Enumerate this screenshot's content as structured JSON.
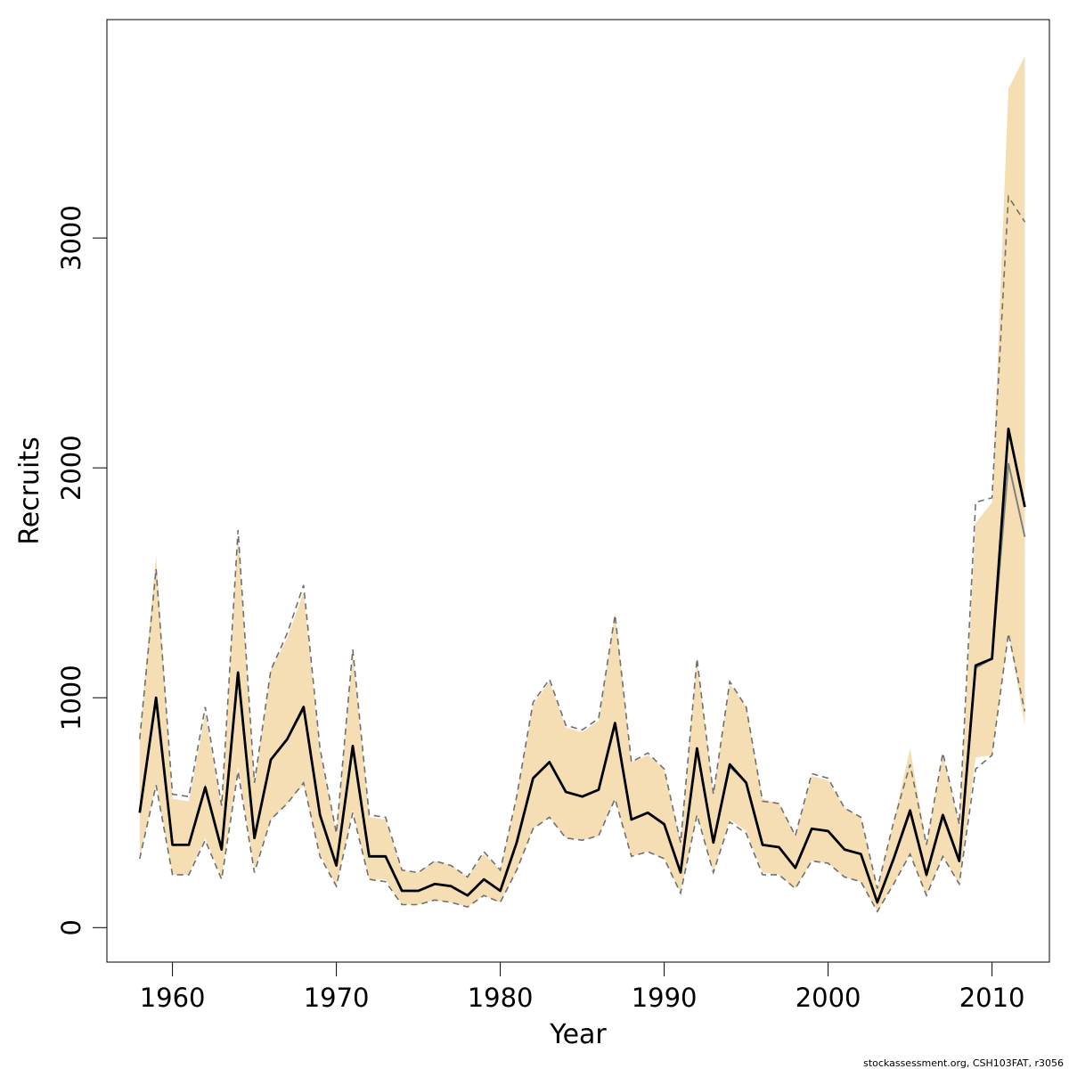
{
  "chart_data": {
    "type": "line",
    "title": "",
    "xlabel": "Year",
    "ylabel": "Recruits",
    "xlim": [
      1956,
      2013.5
    ],
    "ylim": [
      -150,
      3950
    ],
    "x_ticks": [
      1960,
      1970,
      1980,
      1990,
      2000,
      2010
    ],
    "y_ticks": [
      0,
      1000,
      2000,
      3000
    ],
    "grid": false,
    "legend": "none",
    "colors": {
      "band_fill": "#f5deb3",
      "main_line": "#000000",
      "secondary_line": "#808080",
      "interval_line": "#707070"
    },
    "x": [
      1958,
      1959,
      1960,
      1961,
      1962,
      1963,
      1964,
      1965,
      1966,
      1967,
      1968,
      1969,
      1970,
      1971,
      1972,
      1973,
      1974,
      1975,
      1976,
      1977,
      1978,
      1979,
      1980,
      1981,
      1982,
      1983,
      1984,
      1985,
      1986,
      1987,
      1988,
      1989,
      1990,
      1991,
      1992,
      1993,
      1994,
      1995,
      1996,
      1997,
      1998,
      1999,
      2000,
      2001,
      2002,
      2003,
      2004,
      2005,
      2006,
      2007,
      2008,
      2009,
      2010,
      2011,
      2012
    ],
    "series": [
      {
        "role": "estimate",
        "values": [
          500,
          1000,
          360,
          360,
          610,
          340,
          1110,
          390,
          730,
          820,
          960,
          490,
          270,
          790,
          310,
          310,
          160,
          160,
          190,
          180,
          140,
          210,
          160,
          370,
          650,
          720,
          590,
          570,
          600,
          890,
          470,
          500,
          450,
          240,
          780,
          370,
          710,
          630,
          360,
          350,
          260,
          430,
          420,
          340,
          320,
          110,
          300,
          510,
          230,
          490,
          290,
          1140,
          1170,
          2170,
          1830
        ]
      },
      {
        "role": "secondary-estimate",
        "values": [
          500,
          990,
          360,
          360,
          610,
          340,
          1100,
          390,
          730,
          820,
          950,
          490,
          270,
          780,
          310,
          310,
          160,
          160,
          190,
          180,
          140,
          210,
          160,
          370,
          650,
          720,
          590,
          570,
          600,
          880,
          470,
          500,
          450,
          240,
          770,
          370,
          700,
          630,
          360,
          350,
          260,
          430,
          420,
          340,
          320,
          110,
          300,
          500,
          230,
          480,
          290,
          1130,
          1170,
          2020,
          1700
        ]
      },
      {
        "role": "band-upper",
        "values": [
          830,
          1620,
          560,
          550,
          930,
          520,
          1720,
          620,
          1120,
          1260,
          1460,
          770,
          410,
          1200,
          480,
          470,
          250,
          240,
          290,
          270,
          220,
          320,
          250,
          570,
          970,
          1070,
          870,
          850,
          900,
          1370,
          720,
          750,
          690,
          370,
          1160,
          580,
          1060,
          960,
          560,
          540,
          400,
          660,
          640,
          520,
          480,
          170,
          460,
          780,
          360,
          750,
          450,
          1760,
          1850,
          3650,
          3790
        ]
      },
      {
        "role": "band-lower",
        "values": [
          300,
          630,
          230,
          230,
          390,
          220,
          700,
          250,
          470,
          540,
          620,
          320,
          180,
          510,
          210,
          210,
          100,
          100,
          120,
          110,
          90,
          140,
          110,
          250,
          430,
          480,
          390,
          380,
          400,
          560,
          310,
          330,
          300,
          150,
          490,
          240,
          470,
          420,
          240,
          230,
          170,
          290,
          280,
          220,
          200,
          70,
          190,
          320,
          140,
          310,
          190,
          740,
          750,
          1280,
          880
        ]
      },
      {
        "role": "interval-upper",
        "values": [
          820,
          1560,
          580,
          570,
          960,
          530,
          1730,
          630,
          1120,
          1280,
          1490,
          780,
          410,
          1210,
          490,
          480,
          250,
          240,
          290,
          270,
          220,
          330,
          250,
          570,
          980,
          1080,
          880,
          860,
          910,
          1360,
          720,
          760,
          690,
          370,
          1170,
          580,
          1070,
          960,
          550,
          540,
          400,
          670,
          650,
          520,
          480,
          170,
          460,
          710,
          360,
          760,
          450,
          1850,
          1870,
          3180,
          3070
        ]
      },
      {
        "role": "interval-lower",
        "values": [
          300,
          620,
          230,
          230,
          380,
          210,
          680,
          240,
          470,
          540,
          630,
          310,
          180,
          500,
          210,
          200,
          100,
          100,
          120,
          110,
          90,
          140,
          110,
          250,
          430,
          480,
          390,
          380,
          400,
          560,
          310,
          330,
          300,
          150,
          490,
          240,
          460,
          410,
          230,
          230,
          170,
          290,
          280,
          220,
          200,
          70,
          190,
          320,
          140,
          310,
          190,
          690,
          750,
          1280,
          940
        ]
      }
    ]
  },
  "footer": {
    "credit": "stockassessment.org, CSH103FAT, r3056"
  }
}
